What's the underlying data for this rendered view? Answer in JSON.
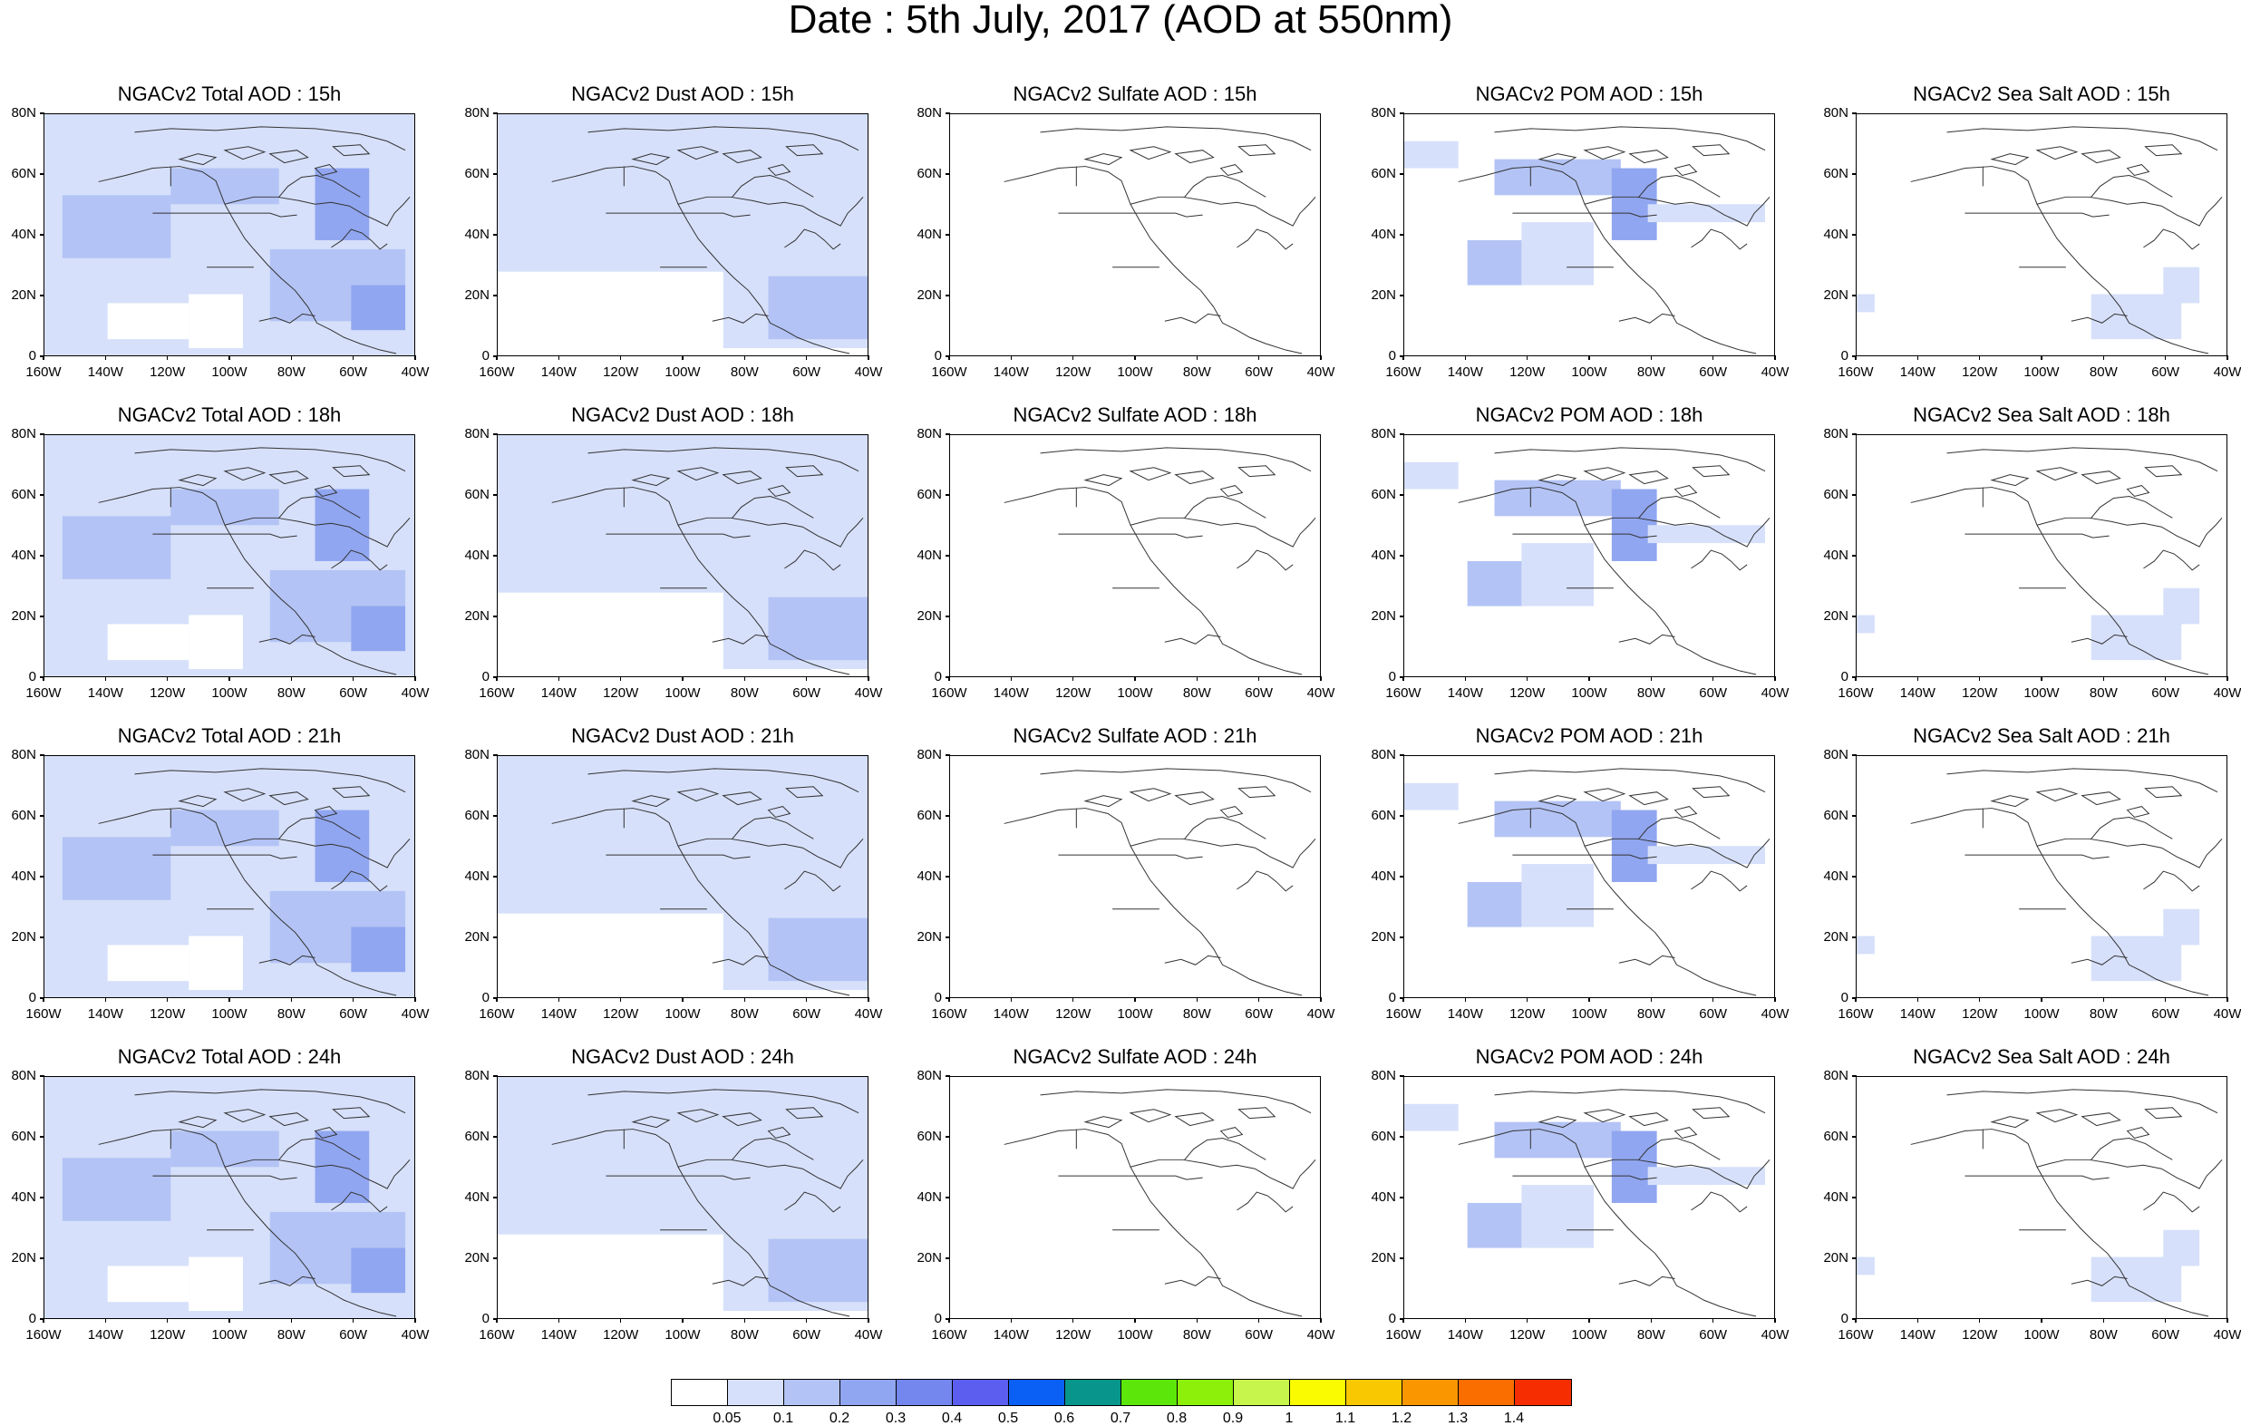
{
  "figure": {
    "title": "Date : 5th July, 2017 (AOD at 550nm)"
  },
  "axes": {
    "y_ticks": [
      "80N",
      "60N",
      "40N",
      "20N",
      "0"
    ],
    "x_ticks": [
      "160W",
      "140W",
      "120W",
      "100W",
      "80W",
      "60W",
      "40W"
    ]
  },
  "rows": [
    {
      "panels": [
        {
          "title": "NGACv2 Total AOD : 15h",
          "variable": "total",
          "hour": "15h"
        },
        {
          "title": "NGACv2 Dust AOD : 15h",
          "variable": "dust",
          "hour": "15h"
        },
        {
          "title": "NGACv2 Sulfate AOD : 15h",
          "variable": "sulfate",
          "hour": "15h"
        },
        {
          "title": "NGACv2 POM AOD : 15h",
          "variable": "pom",
          "hour": "15h"
        },
        {
          "title": "NGACv2 Sea Salt AOD : 15h",
          "variable": "seasalt",
          "hour": "15h"
        }
      ]
    },
    {
      "panels": [
        {
          "title": "NGACv2 Total AOD : 18h",
          "variable": "total",
          "hour": "18h"
        },
        {
          "title": "NGACv2 Dust AOD : 18h",
          "variable": "dust",
          "hour": "18h"
        },
        {
          "title": "NGACv2 Sulfate AOD : 18h",
          "variable": "sulfate",
          "hour": "18h"
        },
        {
          "title": "NGACv2 POM AOD : 18h",
          "variable": "pom",
          "hour": "18h"
        },
        {
          "title": "NGACv2 Sea Salt AOD : 18h",
          "variable": "seasalt",
          "hour": "18h"
        }
      ]
    },
    {
      "panels": [
        {
          "title": "NGACv2 Total AOD : 21h",
          "variable": "total",
          "hour": "21h"
        },
        {
          "title": "NGACv2 Dust AOD : 21h",
          "variable": "dust",
          "hour": "21h"
        },
        {
          "title": "NGACv2 Sulfate AOD : 21h",
          "variable": "sulfate",
          "hour": "21h"
        },
        {
          "title": "NGACv2 POM AOD : 21h",
          "variable": "pom",
          "hour": "21h"
        },
        {
          "title": "NGACv2 Sea Salt AOD : 21h",
          "variable": "seasalt",
          "hour": "21h"
        }
      ]
    },
    {
      "panels": [
        {
          "title": "NGACv2 Total AOD : 24h",
          "variable": "total",
          "hour": "24h"
        },
        {
          "title": "NGACv2 Dust AOD : 24h",
          "variable": "dust",
          "hour": "24h"
        },
        {
          "title": "NGACv2 Sulfate AOD : 24h",
          "variable": "sulfate",
          "hour": "24h"
        },
        {
          "title": "NGACv2 POM AOD : 24h",
          "variable": "pom",
          "hour": "24h"
        },
        {
          "title": "NGACv2 Sea Salt  AOD : 24h",
          "variable": "seasalt",
          "hour": "24h"
        }
      ]
    }
  ],
  "colorbar": {
    "colors": [
      "#ffffff",
      "#d6e0fa",
      "#b3c3f5",
      "#91a6f0",
      "#7387ee",
      "#5c5ef0",
      "#0a5ff5",
      "#08968c",
      "#5ce60a",
      "#8cf00a",
      "#c8f54b",
      "#fafa00",
      "#fac800",
      "#fa9600",
      "#fa6e00",
      "#f52d00"
    ],
    "labels": [
      "0.05",
      "0.1",
      "0.2",
      "0.3",
      "0.4",
      "0.5",
      "0.6",
      "0.7",
      "0.8",
      "0.9",
      "1",
      "1.1",
      "1.2",
      "1.3",
      "1.4"
    ]
  }
}
